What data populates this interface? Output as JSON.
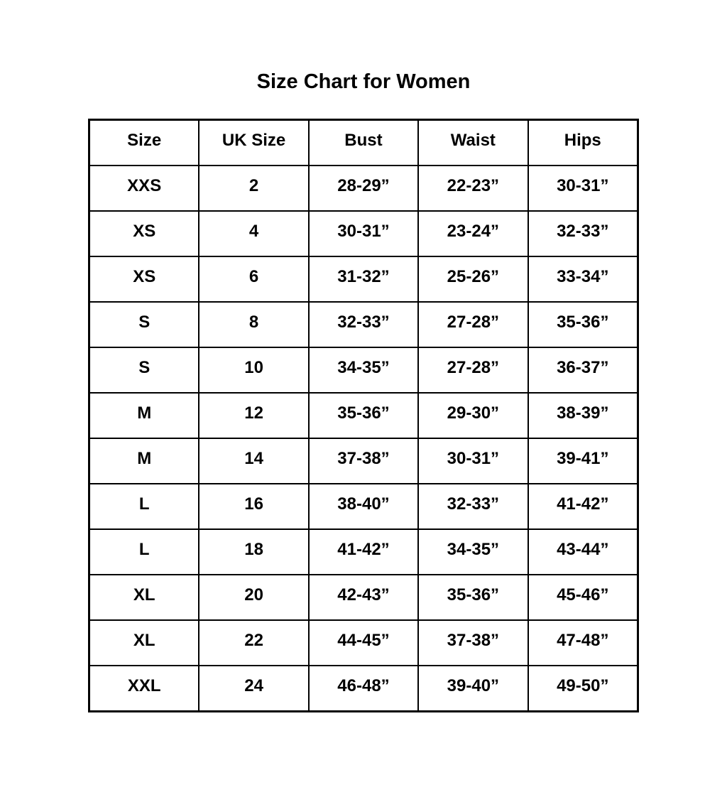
{
  "page": {
    "title": "Size Chart for Women"
  },
  "chart_data": {
    "type": "table",
    "title": "Size Chart for Women",
    "columns": [
      "Size",
      "UK Size",
      "Bust",
      "Waist",
      "Hips"
    ],
    "rows": [
      [
        "XXS",
        "2",
        "28-29”",
        "22-23”",
        "30-31”"
      ],
      [
        "XS",
        "4",
        "30-31”",
        "23-24”",
        "32-33”"
      ],
      [
        "XS",
        "6",
        "31-32”",
        "25-26”",
        "33-34”"
      ],
      [
        "S",
        "8",
        "32-33”",
        "27-28”",
        "35-36”"
      ],
      [
        "S",
        "10",
        "34-35”",
        "27-28”",
        "36-37”"
      ],
      [
        "M",
        "12",
        "35-36”",
        "29-30”",
        "38-39”"
      ],
      [
        "M",
        "14",
        "37-38”",
        "30-31”",
        "39-41”"
      ],
      [
        "L",
        "16",
        "38-40”",
        "32-33”",
        "41-42”"
      ],
      [
        "L",
        "18",
        "41-42”",
        "34-35”",
        "43-44”"
      ],
      [
        "XL",
        "20",
        "42-43”",
        "35-36”",
        "45-46”"
      ],
      [
        "XL",
        "22",
        "44-45”",
        "37-38”",
        "47-48”"
      ],
      [
        "XXL",
        "24",
        "46-48”",
        "39-40”",
        "49-50”"
      ]
    ]
  }
}
